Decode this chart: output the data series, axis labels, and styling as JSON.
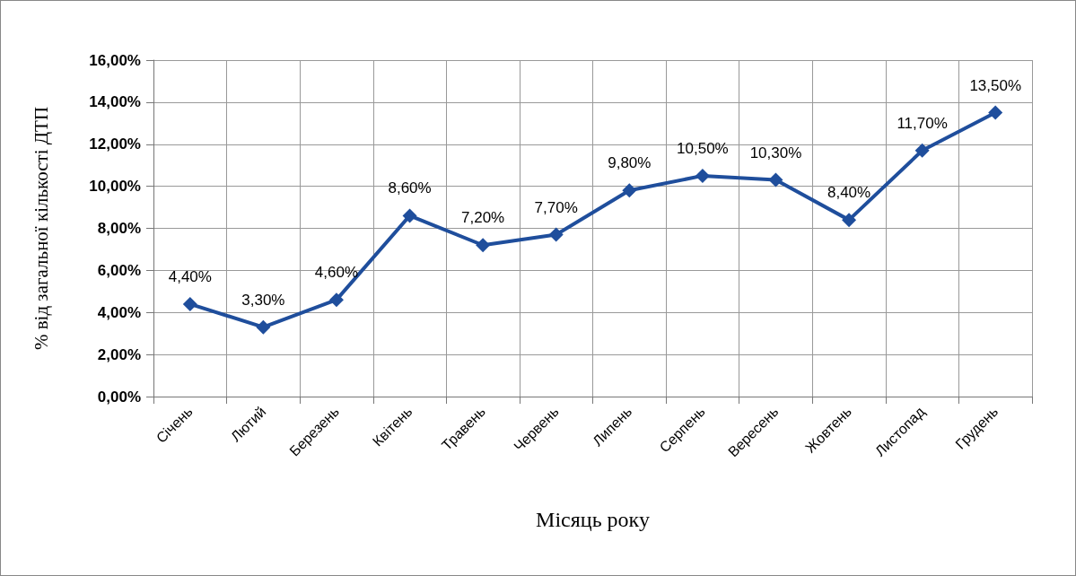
{
  "chart_data": {
    "type": "line",
    "xlabel": "Місяць року",
    "ylabel": "% від загальної кількості ДТП",
    "categories": [
      "Січень",
      "Лютий",
      "Березень",
      "Квітень",
      "Травень",
      "Червень",
      "Липень",
      "Серпень",
      "Вересень",
      "Жовтень",
      "Листопад",
      "Грудень"
    ],
    "series": [
      {
        "color": "#1f4e9c",
        "values": [
          4.4,
          3.3,
          4.6,
          8.6,
          7.2,
          7.7,
          9.8,
          10.5,
          10.3,
          8.4,
          11.7,
          13.5
        ],
        "value_labels": [
          "4,40%",
          "3,30%",
          "4,60%",
          "8,60%",
          "7,20%",
          "7,70%",
          "9,80%",
          "10,50%",
          "10,30%",
          "8,40%",
          "11,70%",
          "13,50%"
        ]
      }
    ],
    "ylim": [
      0,
      16
    ],
    "yticks": [
      {
        "value": 0,
        "label": "0,00%"
      },
      {
        "value": 2,
        "label": "2,00%"
      },
      {
        "value": 4,
        "label": "4,00%"
      },
      {
        "value": 6,
        "label": "6,00%"
      },
      {
        "value": 8,
        "label": "8,00%"
      },
      {
        "value": 10,
        "label": "10,00%"
      },
      {
        "value": 12,
        "label": "12,00%"
      },
      {
        "value": 14,
        "label": "14,00%"
      },
      {
        "value": 16,
        "label": "16,00%"
      }
    ],
    "grid": true,
    "marker": "diamond",
    "line_style": "solid"
  }
}
